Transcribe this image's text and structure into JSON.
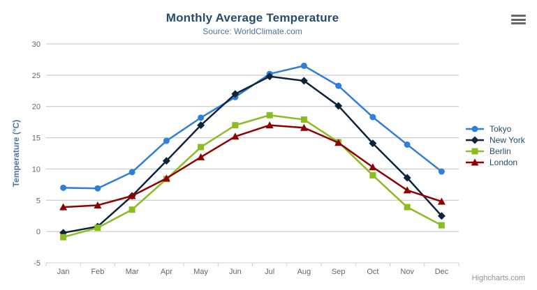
{
  "chart_data": {
    "type": "line",
    "title": "Monthly Average Temperature",
    "subtitle": "Source: WorldClimate.com",
    "xlabel": "",
    "ylabel": "Temperature (°C)",
    "categories": [
      "Jan",
      "Feb",
      "Mar",
      "Apr",
      "May",
      "Jun",
      "Jul",
      "Aug",
      "Sep",
      "Oct",
      "Nov",
      "Dec"
    ],
    "ylim": [
      -5,
      30
    ],
    "ytick_interval": 5,
    "grid": true,
    "legend_position": "right",
    "series": [
      {
        "name": "Tokyo",
        "color": "#2f7ed8",
        "marker": "circle",
        "values": [
          7.0,
          6.9,
          9.5,
          14.5,
          18.2,
          21.5,
          25.2,
          26.5,
          23.3,
          18.3,
          13.9,
          9.6
        ]
      },
      {
        "name": "New York",
        "color": "#0d233a",
        "marker": "diamond",
        "values": [
          -0.2,
          0.8,
          5.7,
          11.3,
          17.0,
          22.0,
          24.8,
          24.1,
          20.1,
          14.1,
          8.6,
          2.5
        ]
      },
      {
        "name": "Berlin",
        "color": "#8bbc21",
        "marker": "square",
        "values": [
          -0.9,
          0.6,
          3.5,
          8.4,
          13.5,
          17.0,
          18.6,
          17.9,
          14.3,
          9.0,
          3.9,
          1.0
        ]
      },
      {
        "name": "London",
        "color": "#910000",
        "marker": "triangle",
        "values": [
          3.9,
          4.2,
          5.7,
          8.5,
          11.9,
          15.2,
          17.0,
          16.6,
          14.2,
          10.3,
          6.6,
          4.8
        ]
      }
    ],
    "colors": {
      "title": "#274b6d",
      "subtitle": "#4d759e",
      "axis_label": "#666666",
      "axis_title": "#4d759e",
      "grid": "#c0c0c0",
      "axis_line": "#c0d0e0",
      "legend_text": "#274b6d",
      "credits": "#909090"
    }
  },
  "export_menu": {
    "icon": "hamburger-menu-icon"
  },
  "credits": {
    "label": "Highcharts.com"
  }
}
